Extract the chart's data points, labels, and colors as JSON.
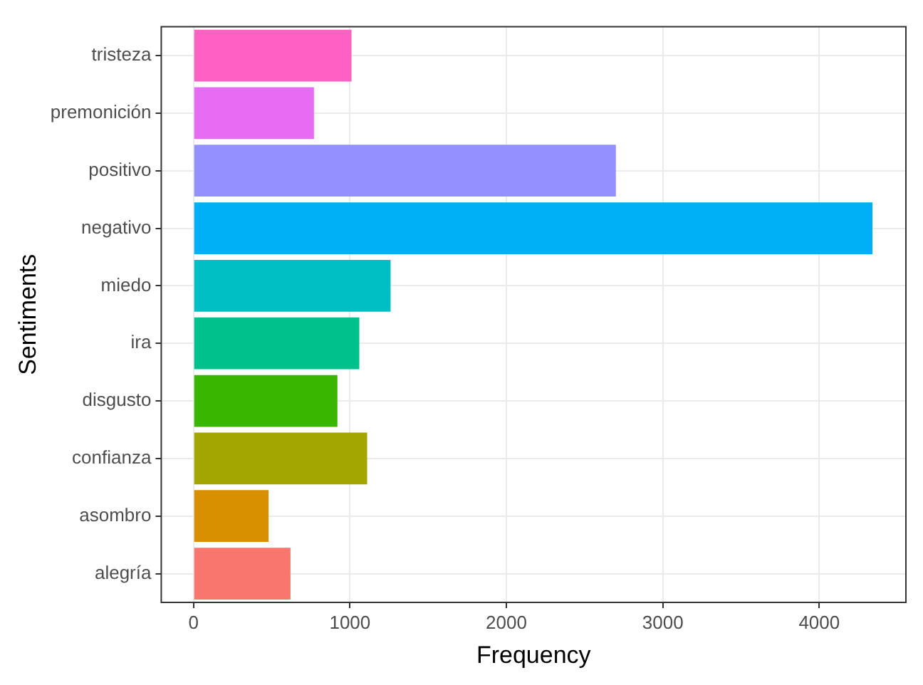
{
  "chart_data": {
    "type": "bar",
    "orientation": "horizontal",
    "xlabel": "Frequency",
    "ylabel": "Sentiments",
    "categories": [
      "tristeza",
      "premonición",
      "positivo",
      "negativo",
      "miedo",
      "ira",
      "disgusto",
      "confianza",
      "asombro",
      "alegría"
    ],
    "values": [
      1010,
      770,
      2700,
      4340,
      1260,
      1060,
      920,
      1110,
      480,
      620
    ],
    "colors": [
      "#ff61c3",
      "#e76bf3",
      "#9590ff",
      "#00b0f6",
      "#00bfc4",
      "#00c08b",
      "#39b600",
      "#a3a500",
      "#d89000",
      "#f8766d"
    ],
    "xlim": [
      -206,
      4554
    ],
    "xticks": [
      0,
      1000,
      2000,
      3000,
      4000
    ],
    "grid": true,
    "legend": false
  }
}
